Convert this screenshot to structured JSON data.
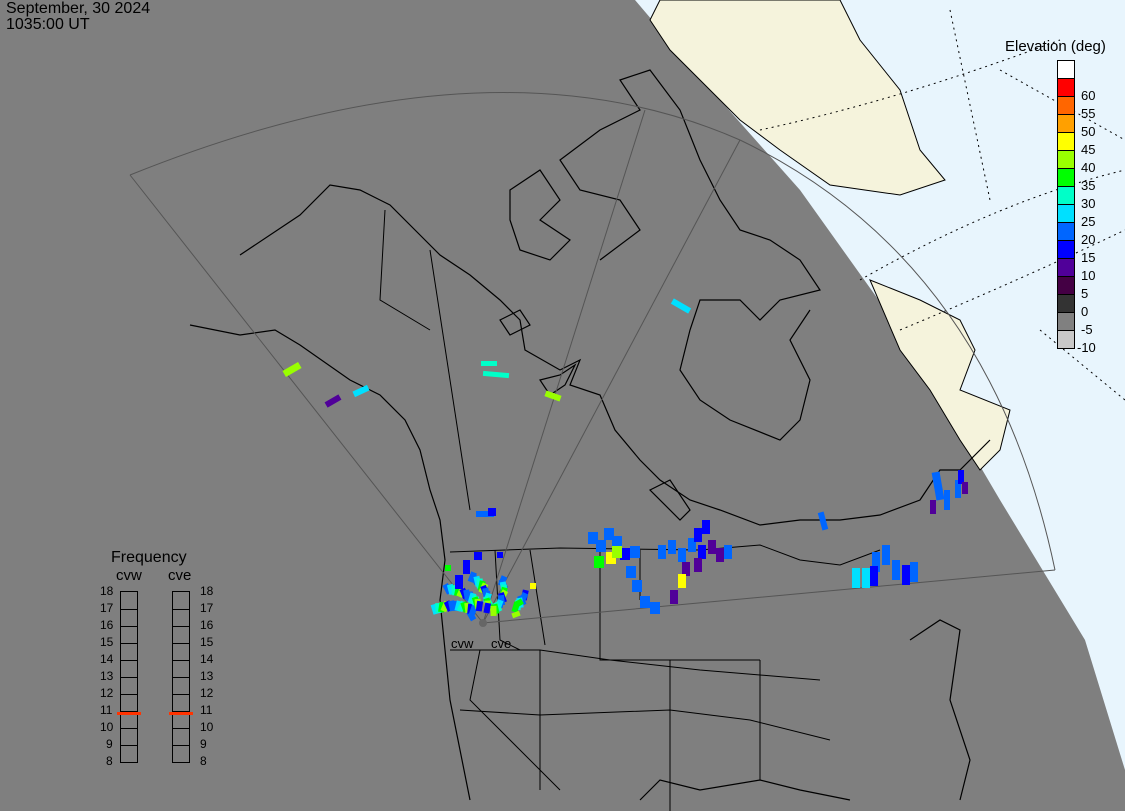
{
  "header": {
    "date": "September, 30 2024",
    "time": "1035:00 UT"
  },
  "colors": {
    "night": "#7f7f7f",
    "day": "#e8f5fd",
    "day_land": "#f5f3dc",
    "frequency_marker": "#ff3300"
  },
  "elevation_legend": {
    "title": "Elevation (deg)",
    "bins": [
      {
        "label": "",
        "color": "#ffffff"
      },
      {
        "label": "60",
        "color": "#ff0000"
      },
      {
        "label": "55",
        "color": "#ff6600"
      },
      {
        "label": "50",
        "color": "#ffa000"
      },
      {
        "label": "45",
        "color": "#ffff00"
      },
      {
        "label": "40",
        "color": "#99ff00"
      },
      {
        "label": "35",
        "color": "#00ff00"
      },
      {
        "label": "30",
        "color": "#00ffc8"
      },
      {
        "label": "25",
        "color": "#00e0ff"
      },
      {
        "label": "20",
        "color": "#0066ff"
      },
      {
        "label": "15",
        "color": "#0000ff"
      },
      {
        "label": "10",
        "color": "#500099"
      },
      {
        "label": "5",
        "color": "#440044"
      },
      {
        "label": "0",
        "color": "#333333"
      },
      {
        "label": "-5",
        "color": "#808080"
      },
      {
        "label": "-10",
        "color": "#c8c8c8"
      }
    ]
  },
  "frequency": {
    "title": "Frequency",
    "scale": [
      "18",
      "17",
      "16",
      "15",
      "14",
      "13",
      "12",
      "11",
      "10",
      "9",
      "8"
    ],
    "range_mhz": [
      8,
      18
    ],
    "radars": [
      {
        "name": "cvw",
        "frequency_mhz": 10.8
      },
      {
        "name": "cve",
        "frequency_mhz": 10.8
      }
    ]
  },
  "radar_sites": [
    "cvw",
    "cve"
  ]
}
